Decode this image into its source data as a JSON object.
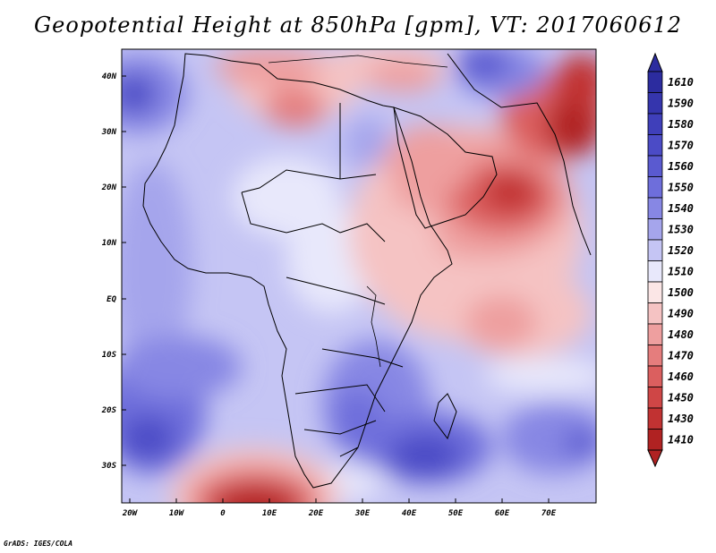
{
  "title": "Geopotential Height at 850hPa [gpm], VT: 2017060612",
  "credit": "GrADS: IGES/COLA",
  "map": {
    "lon_labels": [
      "20W",
      "10W",
      "0",
      "10E",
      "20E",
      "30E",
      "40E",
      "50E",
      "60E",
      "70E"
    ],
    "lat_labels": [
      "40N",
      "30N",
      "20N",
      "10N",
      "EQ",
      "10S",
      "20S",
      "30S"
    ],
    "lon_range": [
      -22,
      80
    ],
    "lat_range": [
      -37,
      45
    ]
  },
  "legend": {
    "levels": [
      {
        "label": "1610",
        "color": "#2c2c9f"
      },
      {
        "label": "1590",
        "color": "#3535ad"
      },
      {
        "label": "1580",
        "color": "#3f3fba"
      },
      {
        "label": "1570",
        "color": "#4b4bc6"
      },
      {
        "label": "1560",
        "color": "#5a5ad0"
      },
      {
        "label": "1550",
        "color": "#6e6edb"
      },
      {
        "label": "1540",
        "color": "#8787e4"
      },
      {
        "label": "1530",
        "color": "#a5a5ec"
      },
      {
        "label": "1520",
        "color": "#c5c5f4"
      },
      {
        "label": "1510",
        "color": "#e8e8fb"
      },
      {
        "label": "1500",
        "color": "#fbe6e6"
      },
      {
        "label": "1490",
        "color": "#f5c3c3"
      },
      {
        "label": "1480",
        "color": "#ee9f9f"
      },
      {
        "label": "1470",
        "color": "#e57d7d"
      },
      {
        "label": "1460",
        "color": "#db5f5f"
      },
      {
        "label": "1450",
        "color": "#cf4646"
      },
      {
        "label": "1430",
        "color": "#c13232"
      },
      {
        "label": "1410",
        "color": "#b02222"
      }
    ]
  }
}
